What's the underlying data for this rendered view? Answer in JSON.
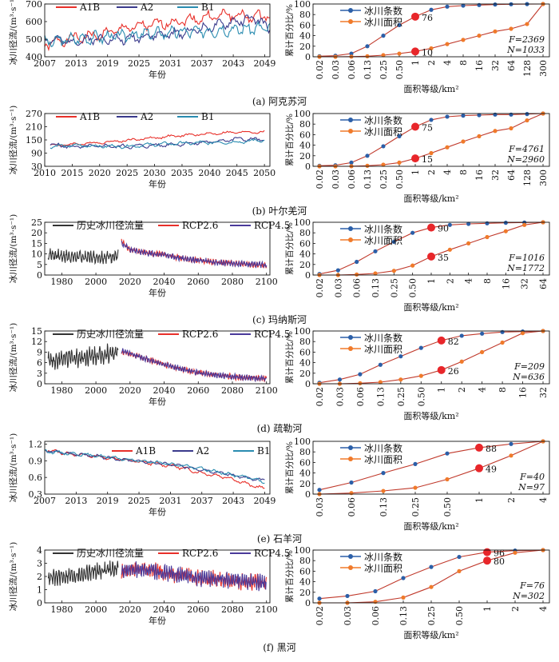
{
  "figure": {
    "colors": {
      "count": "#2b5fa8",
      "area": "#f07a2a",
      "marker": "#e8262a",
      "A1B": "#e8302a",
      "A2": "#3a3a8c",
      "B1": "#2a8cb0",
      "hist": "#111111",
      "RCP2.6": "#e8302a",
      "RCP4.5": "#4a3a9a"
    },
    "runoff_ylabel": "冰川径流/(m³·s⁻¹)",
    "runoff_xlabel": "年份",
    "cdf_ylabel": "累计百分比/%",
    "cdf_xlabel": "面积等级/km²",
    "count_label": "冰川条数",
    "area_label": "冰川面积"
  },
  "chart_data": [
    {
      "caption": "(a) 阿克苏河",
      "runoff": {
        "type": "line",
        "legend": [
          "A1B",
          "A2",
          "B1"
        ],
        "yticks": [
          400,
          500,
          600,
          700
        ],
        "ylim": [
          400,
          700
        ],
        "xticks": [
          "2007",
          "2013",
          "2019",
          "2025",
          "2031",
          "2037",
          "2043",
          "2049"
        ],
        "xlim": [
          2007,
          2050
        ],
        "series": [
          {
            "name": "A1B",
            "x": [
              2007,
              2012,
              2017,
              2022,
              2027,
              2032,
              2037,
              2042,
              2047,
              2050
            ],
            "y": [
              470,
              505,
              520,
              560,
              580,
              600,
              620,
              640,
              625,
              640
            ],
            "amp": 40,
            "wave": 3.2,
            "seed": 1
          },
          {
            "name": "A2",
            "x": [
              2007,
              2012,
              2017,
              2022,
              2027,
              2032,
              2037,
              2042,
              2047,
              2050
            ],
            "y": [
              500,
              485,
              505,
              500,
              520,
              530,
              560,
              590,
              620,
              560
            ],
            "amp": 35,
            "wave": 2.8,
            "seed": 2
          },
          {
            "name": "B1",
            "x": [
              2007,
              2012,
              2017,
              2022,
              2027,
              2032,
              2037,
              2042,
              2047,
              2050
            ],
            "y": [
              480,
              500,
              510,
              520,
              530,
              540,
              545,
              555,
              560,
              565
            ],
            "amp": 45,
            "wave": 2.4,
            "seed": 3
          }
        ]
      },
      "cdf": {
        "type": "line",
        "categories": [
          "0.02",
          "0.03",
          "0.06",
          "0.13",
          "0.25",
          "0.50",
          "1",
          "2",
          "4",
          "8",
          "16",
          "32",
          "64",
          "128",
          "300"
        ],
        "count": [
          1,
          2,
          6,
          20,
          40,
          60,
          76,
          89,
          95,
          97,
          98,
          99,
          99.5,
          99.8,
          100
        ],
        "area": [
          0,
          0,
          0.3,
          1,
          3,
          6,
          10,
          16,
          24,
          32,
          40,
          48,
          53,
          62,
          100
        ],
        "marked_index": 6,
        "count_mark_label": "76",
        "area_mark_label": "10",
        "stats": [
          "F=2369",
          "N=1033"
        ]
      }
    },
    {
      "caption": "(b) 叶尔羌河",
      "runoff": {
        "type": "line",
        "legend": [
          "A1B",
          "A2",
          "B1"
        ],
        "yticks": [
          30,
          90,
          150,
          210,
          270
        ],
        "ylim": [
          30,
          270
        ],
        "xticks": [
          "2010",
          "2015",
          "2020",
          "2025",
          "2030",
          "2035",
          "2040",
          "2045",
          "2050"
        ],
        "xlim": [
          2010,
          2051
        ],
        "series": [
          {
            "name": "A1B",
            "x": [
              2011,
              2015,
              2020,
              2025,
              2030,
              2035,
              2040,
              2045,
              2050
            ],
            "y": [
              125,
              130,
              138,
              148,
              160,
              170,
              178,
              185,
              186
            ],
            "amp": 8,
            "wave": 3.5,
            "seed": 4
          },
          {
            "name": "A2",
            "x": [
              2011,
              2015,
              2020,
              2025,
              2030,
              2035,
              2040,
              2045,
              2050
            ],
            "y": [
              130,
              118,
              122,
              120,
              125,
              132,
              140,
              155,
              150
            ],
            "amp": 12,
            "wave": 3.0,
            "seed": 5
          },
          {
            "name": "B1",
            "x": [
              2011,
              2015,
              2020,
              2025,
              2030,
              2035,
              2040,
              2045,
              2050
            ],
            "y": [
              120,
              125,
              122,
              120,
              130,
              135,
              138,
              140,
              150
            ],
            "amp": 10,
            "wave": 3.2,
            "seed": 6
          }
        ]
      },
      "cdf": {
        "type": "line",
        "categories": [
          "0.02",
          "0.03",
          "0.06",
          "0.13",
          "0.25",
          "0.50",
          "1",
          "2",
          "4",
          "8",
          "16",
          "32",
          "64",
          "128",
          "300"
        ],
        "count": [
          1,
          2,
          7,
          20,
          38,
          57,
          75,
          88,
          94,
          96,
          97,
          98,
          98,
          99,
          100
        ],
        "area": [
          0,
          0,
          0.2,
          1,
          3,
          7,
          15,
          25,
          36,
          47,
          57,
          67,
          72,
          87,
          100
        ],
        "marked_index": 6,
        "count_mark_label": "75",
        "area_mark_label": "15",
        "stats": [
          "F=4761",
          "N=2960"
        ]
      }
    },
    {
      "caption": "(c) 玛纳斯河",
      "runoff": {
        "type": "line",
        "legend": [
          "历史冰川径流量",
          "RCP2.6",
          "RCP4.5"
        ],
        "yticks": [
          0,
          5,
          10,
          15,
          20,
          25
        ],
        "ylim": [
          0,
          25
        ],
        "xticks": [
          "1980",
          "2000",
          "2020",
          "2040",
          "2060",
          "2080",
          "2100"
        ],
        "xlim": [
          1970,
          2102
        ],
        "series": [
          {
            "name": "历史冰川径流量",
            "x": [
              1972,
              1980,
              1990,
              2000,
              2013
            ],
            "y": [
              10,
              9,
              8.5,
              8.5,
              9
            ],
            "amp": 3.5,
            "wave": 1.6,
            "seed": 7
          },
          {
            "name": "RCP2.6",
            "x": [
              2015,
              2020,
              2030,
              2040,
              2050,
              2060,
              2070,
              2080,
              2090,
              2100
            ],
            "y": [
              16,
              12,
              10.5,
              9.5,
              8,
              7,
              6,
              5.5,
              5,
              4.5
            ],
            "amp": 1.6,
            "wave": 1.5,
            "seed": 8
          },
          {
            "name": "RCP4.5",
            "x": [
              2015,
              2020,
              2030,
              2040,
              2050,
              2060,
              2070,
              2080,
              2090,
              2100
            ],
            "y": [
              15,
              12,
              10.5,
              9.5,
              8,
              7,
              6,
              5.5,
              5,
              4.8
            ],
            "amp": 1.6,
            "wave": 1.5,
            "seed": 9
          }
        ]
      },
      "cdf": {
        "type": "line",
        "categories": [
          "0.02",
          "0.03",
          "0.06",
          "0.13",
          "0.25",
          "0.50",
          "1",
          "2",
          "4",
          "8",
          "16",
          "32",
          "64"
        ],
        "count": [
          2,
          9,
          25,
          45,
          63,
          80,
          90,
          95,
          97,
          98,
          99,
          99.5,
          100
        ],
        "area": [
          0,
          0,
          1,
          3,
          8,
          18,
          35,
          48,
          60,
          72,
          83,
          95,
          100
        ],
        "marked_index": 6,
        "count_mark_label": "90",
        "area_mark_label": "35",
        "stats": [
          "F=1016",
          "N=1772"
        ]
      }
    },
    {
      "caption": "(d) 疏勒河",
      "runoff": {
        "type": "line",
        "legend": [
          "历史冰川径流量",
          "RCP2.6",
          "RCP4.5"
        ],
        "yticks": [
          0,
          3,
          6,
          9,
          12,
          15
        ],
        "ylim": [
          0,
          15
        ],
        "xticks": [
          "1980",
          "2000",
          "2020",
          "2040",
          "2060",
          "2080",
          "2100"
        ],
        "xlim": [
          1970,
          2102
        ],
        "series": [
          {
            "name": "历史冰川径流量",
            "x": [
              1972,
              1980,
              1990,
              2000,
              2013
            ],
            "y": [
              6.5,
              7,
              7.5,
              8,
              9
            ],
            "amp": 3.0,
            "wave": 1.5,
            "seed": 10
          },
          {
            "name": "RCP2.6",
            "x": [
              2015,
              2020,
              2030,
              2040,
              2050,
              2060,
              2070,
              2080,
              2090,
              2100
            ],
            "y": [
              9,
              8.5,
              7,
              5.5,
              4.2,
              3.2,
              2.5,
              2,
              1.7,
              1.5
            ],
            "amp": 0.9,
            "wave": 1.4,
            "seed": 11
          },
          {
            "name": "RCP4.5",
            "x": [
              2015,
              2020,
              2030,
              2040,
              2050,
              2060,
              2070,
              2080,
              2090,
              2100
            ],
            "y": [
              9.5,
              8.5,
              7,
              5.5,
              4.2,
              3.2,
              2.5,
              2,
              1.7,
              1.5
            ],
            "amp": 0.9,
            "wave": 1.4,
            "seed": 12
          }
        ]
      },
      "cdf": {
        "type": "line",
        "categories": [
          "0.02",
          "0.03",
          "0.06",
          "0.13",
          "0.25",
          "0.50",
          "1",
          "2",
          "4",
          "8",
          "16",
          "32"
        ],
        "count": [
          2,
          8,
          18,
          36,
          52,
          68,
          82,
          91,
          95,
          98,
          99,
          100
        ],
        "area": [
          0,
          0,
          1,
          3,
          8,
          15,
          26,
          42,
          60,
          78,
          96,
          100
        ],
        "marked_index": 6,
        "count_mark_label": "82",
        "area_mark_label": "26",
        "stats": [
          "F=209",
          "N=636"
        ]
      }
    },
    {
      "caption": "(e) 石羊河",
      "runoff": {
        "type": "line",
        "legend": [
          "A1B",
          "A2",
          "B1"
        ],
        "yticks": [
          0.3,
          0.6,
          0.9,
          1.2
        ],
        "ylim": [
          0.3,
          1.25
        ],
        "xticks": [
          "2007",
          "2013",
          "2019",
          "2025",
          "2031",
          "2037",
          "2043",
          "2049"
        ],
        "xlim": [
          2007,
          2050
        ],
        "series": [
          {
            "name": "A1B",
            "x": [
              2007,
              2012,
              2017,
              2022,
              2027,
              2032,
              2037,
              2042,
              2047,
              2049
            ],
            "y": [
              1.1,
              1.02,
              0.98,
              0.92,
              0.86,
              0.8,
              0.68,
              0.6,
              0.44,
              0.4
            ],
            "amp": 0.04,
            "wave": 2.8,
            "seed": 13
          },
          {
            "name": "A2",
            "x": [
              2007,
              2012,
              2017,
              2022,
              2027,
              2032,
              2037,
              2042,
              2047,
              2049
            ],
            "y": [
              1.08,
              1.03,
              0.98,
              0.92,
              0.87,
              0.82,
              0.74,
              0.66,
              0.56,
              0.55
            ],
            "amp": 0.035,
            "wave": 2.6,
            "seed": 14
          },
          {
            "name": "B1",
            "x": [
              2007,
              2012,
              2017,
              2022,
              2027,
              2032,
              2037,
              2042,
              2047,
              2049
            ],
            "y": [
              1.07,
              1.03,
              0.99,
              0.93,
              0.88,
              0.83,
              0.76,
              0.66,
              0.58,
              0.5
            ],
            "amp": 0.035,
            "wave": 2.7,
            "seed": 15
          }
        ]
      },
      "cdf": {
        "type": "line",
        "categories": [
          "0.03",
          "0.06",
          "0.13",
          "0.25",
          "0.50",
          "1",
          "2",
          "4"
        ],
        "count": [
          8,
          22,
          40,
          57,
          77,
          88,
          95,
          100
        ],
        "area": [
          0,
          2,
          6,
          12,
          28,
          49,
          73,
          100
        ],
        "marked_index": 5,
        "count_mark_label": "88",
        "area_mark_label": "49",
        "stats": [
          "F=40",
          "N=97"
        ]
      }
    },
    {
      "caption": "(f) 黑河",
      "runoff": {
        "type": "line",
        "legend": [
          "历史冰川径流量",
          "RCP2.6",
          "RCP4.5"
        ],
        "yticks": [
          0,
          1,
          2,
          3,
          4
        ],
        "ylim": [
          0,
          4
        ],
        "xticks": [
          "1980",
          "2000",
          "2020",
          "2040",
          "2060",
          "2080",
          "2100"
        ],
        "xlim": [
          1970,
          2102
        ],
        "series": [
          {
            "name": "历史冰川径流量",
            "x": [
              1972,
              1980,
              1990,
              2000,
              2013
            ],
            "y": [
              1.8,
              2,
              2.1,
              2.4,
              2.6
            ],
            "amp": 0.7,
            "wave": 1.5,
            "seed": 16
          },
          {
            "name": "RCP2.6",
            "x": [
              2015,
              2020,
              2030,
              2040,
              2050,
              2060,
              2070,
              2080,
              2090,
              2100
            ],
            "y": [
              2.3,
              2.6,
              2.5,
              2.3,
              2.1,
              1.9,
              1.8,
              1.7,
              1.6,
              1.6
            ],
            "amp": 0.7,
            "wave": 1.3,
            "seed": 17
          },
          {
            "name": "RCP4.5",
            "x": [
              2015,
              2020,
              2030,
              2040,
              2050,
              2060,
              2070,
              2080,
              2090,
              2100
            ],
            "y": [
              2.3,
              2.5,
              2.5,
              2.3,
              2.1,
              1.9,
              1.8,
              1.7,
              1.6,
              1.5
            ],
            "amp": 0.7,
            "wave": 1.3,
            "seed": 18
          }
        ]
      },
      "cdf": {
        "type": "line",
        "categories": [
          "0.02",
          "0.03",
          "0.06",
          "0.13",
          "0.25",
          "0.50",
          "1",
          "2",
          "4"
        ],
        "count": [
          8,
          13,
          22,
          47,
          68,
          87,
          96,
          99,
          100
        ],
        "area": [
          0,
          0,
          2,
          10,
          30,
          60,
          80,
          95,
          100
        ],
        "marked_index": 6,
        "count_mark_label": "96",
        "area_mark_label": "80",
        "stats": [
          "F=76",
          "N=302"
        ]
      }
    }
  ]
}
